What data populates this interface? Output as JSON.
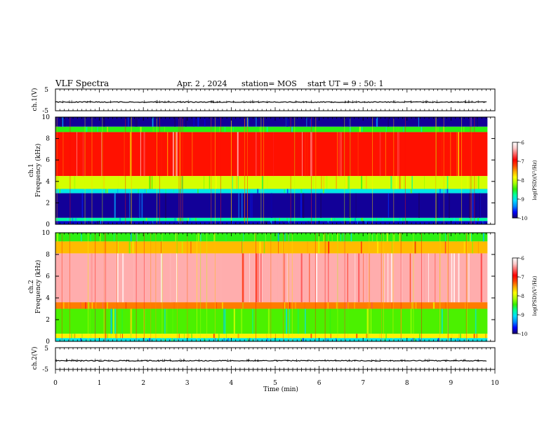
{
  "header": {
    "title": "VLF Spectra",
    "date": "Apr. 2 , 2024",
    "station": "station= MOS",
    "start_ut": "start UT =  9 : 50: 1"
  },
  "panels": {
    "ch1v": {
      "label": "ch.1(V)",
      "ticks": [
        "5",
        "-5"
      ]
    },
    "spec1": {
      "label_ch": "ch.1",
      "label_freq": "Frequency (kHz)"
    },
    "spec2": {
      "label_ch": "ch.2",
      "label_freq": "Frequency (kHz)"
    },
    "ch2v": {
      "label": "ch.2(V)",
      "ticks": [
        "5",
        "-5"
      ]
    }
  },
  "colorbar": {
    "label": "log(PSD)(V²/Hz)",
    "ticks": [
      "-6",
      "-7",
      "-8",
      "-9",
      "-10"
    ],
    "colors": [
      "#1a0066",
      "#0000ff",
      "#0088ff",
      "#00ddff",
      "#00ff99",
      "#33ee00",
      "#aaff00",
      "#ffff00",
      "#ffaa00",
      "#ff4400",
      "#ff0000",
      "#ff6666",
      "#ffcccc",
      "#ffffff"
    ]
  },
  "x_axis": {
    "label": "Time (min)",
    "ticks": [
      "0",
      "1",
      "2",
      "3",
      "4",
      "5",
      "6",
      "7",
      "8",
      "9",
      "10"
    ]
  },
  "chart_data": {
    "type": "heatmap",
    "xlabel": "Time (min)",
    "x_range": [
      0,
      10
    ],
    "data_end_min": 9.83,
    "spectrograms": [
      {
        "name": "ch.1",
        "ylabel": "Frequency (kHz)",
        "yticks": [
          0,
          2,
          4,
          6,
          8,
          10
        ],
        "ylim": [
          0,
          10
        ],
        "color_range": [
          -10,
          -6
        ],
        "bands": [
          {
            "f_lo": 9.1,
            "f_hi": 10.0,
            "level": -9.9
          },
          {
            "f_lo": 8.6,
            "f_hi": 9.1,
            "level": -8.5
          },
          {
            "f_lo": 4.5,
            "f_hi": 8.6,
            "level": -7.0
          },
          {
            "f_lo": 3.3,
            "f_hi": 4.5,
            "level": -8.0
          },
          {
            "f_lo": 2.9,
            "f_hi": 3.3,
            "level": -9.0
          },
          {
            "f_lo": 0.6,
            "f_hi": 2.9,
            "level": -9.9
          },
          {
            "f_lo": 0.3,
            "f_hi": 0.6,
            "level": -8.8
          },
          {
            "f_lo": 0.0,
            "f_hi": 0.3,
            "level": -9.8
          }
        ]
      },
      {
        "name": "ch.2",
        "ylabel": "Frequency (kHz)",
        "yticks": [
          0,
          2,
          4,
          6,
          8,
          10
        ],
        "ylim": [
          0,
          10
        ],
        "color_range": [
          -10,
          -6
        ],
        "bands": [
          {
            "f_lo": 9.2,
            "f_hi": 10.0,
            "level": -8.5
          },
          {
            "f_lo": 8.1,
            "f_hi": 9.2,
            "level": -7.6
          },
          {
            "f_lo": 3.6,
            "f_hi": 8.1,
            "level": -6.4
          },
          {
            "f_lo": 3.0,
            "f_hi": 3.6,
            "level": -7.4
          },
          {
            "f_lo": 0.7,
            "f_hi": 3.0,
            "level": -8.4
          },
          {
            "f_lo": 0.3,
            "f_hi": 0.7,
            "level": -7.8
          },
          {
            "f_lo": 0.0,
            "f_hi": 0.3,
            "level": -9.0
          }
        ]
      }
    ],
    "waveforms": [
      {
        "name": "ch.1(V)",
        "ylim": [
          -5,
          5
        ],
        "baseline": -1.0
      },
      {
        "name": "ch.2(V)",
        "ylim": [
          -5,
          5
        ],
        "baseline": -1.0
      }
    ]
  }
}
